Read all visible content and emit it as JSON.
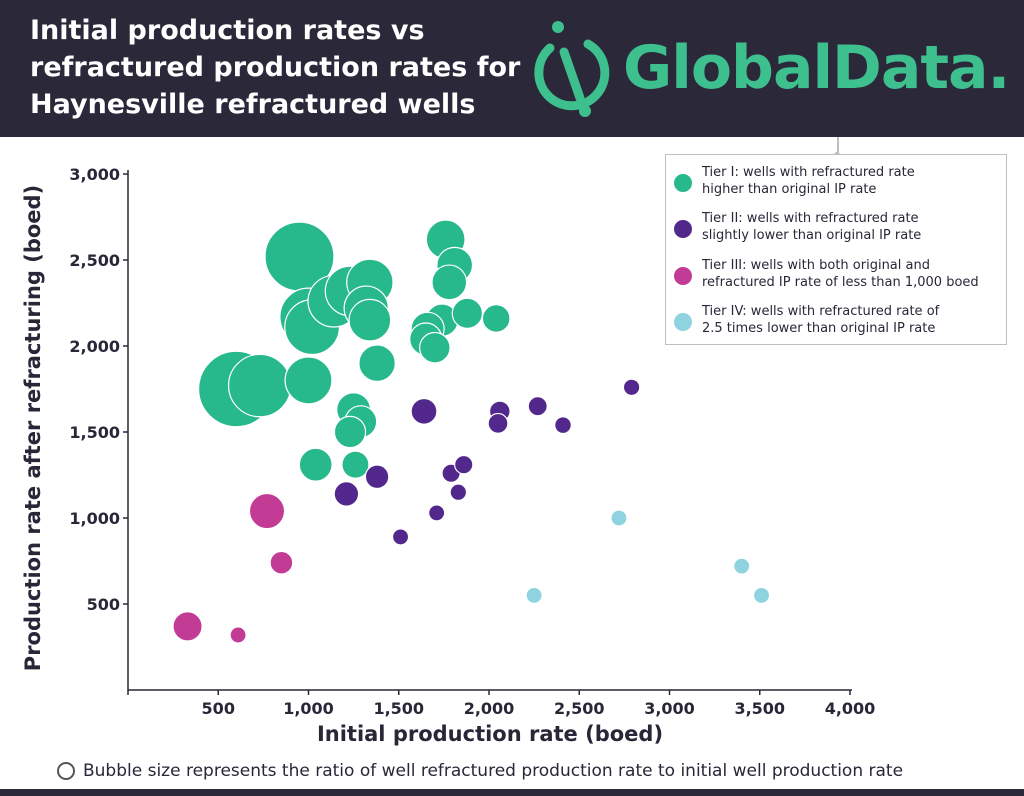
{
  "header": {
    "title_lines": [
      "Initial production rates vs",
      "refractured production rates for",
      "Haynesville refractured wells"
    ],
    "logo_text": "GlobalData.",
    "logo_color": "#3dbf8e",
    "background": "#2b2839"
  },
  "legend": {
    "items": [
      {
        "line1": "Tier I: wells with refractured rate",
        "line2": "higher than original IP rate",
        "color": "#27b98b"
      },
      {
        "line1": "Tier II: wells with refractured rate",
        "line2": "slightly lower than original IP rate",
        "color": "#53288c"
      },
      {
        "line1": "Tier III: wells with both original and",
        "line2": "refractured IP rate of less than 1,000 boed",
        "color": "#c23c95"
      },
      {
        "line1": "Tier IV: wells with refractured rate of",
        "line2": "2.5 times lower than original IP rate",
        "color": "#8ed3df"
      }
    ]
  },
  "footnote": "Bubble size represents the ratio of well refractured production rate to initial well production rate",
  "chart_data": {
    "type": "scatter",
    "title": "Initial production rates vs refractured production rates for Haynesville refractured wells",
    "xlabel": "Initial production rate (boed)",
    "ylabel": "Production rate after refracturing (boed)",
    "xlim": [
      0,
      4000
    ],
    "ylim": [
      0,
      3000
    ],
    "xticks": [
      500,
      1000,
      1500,
      2000,
      2500,
      3000,
      3500,
      4000
    ],
    "xtick_labels": [
      "500",
      "1,000",
      "1,500",
      "2,000",
      "2,500",
      "3,000",
      "3,500",
      "4,000"
    ],
    "yticks": [
      500,
      1000,
      1500,
      2000,
      2500,
      3000
    ],
    "ytick_labels": [
      "500",
      "1,000",
      "1,500",
      "2,000",
      "2,500",
      "3,000"
    ],
    "grid": false,
    "legend_position": "top-right",
    "bubble_size_meaning": "ratio of refractured rate to initial rate",
    "series": [
      {
        "name": "Tier I: wells with refractured rate higher than original IP rate",
        "color": "#27b98b",
        "points": [
          {
            "x": 600,
            "y": 1750,
            "r": 2.9
          },
          {
            "x": 730,
            "y": 1770,
            "r": 2.4
          },
          {
            "x": 950,
            "y": 2520,
            "r": 2.65
          },
          {
            "x": 1000,
            "y": 2170,
            "r": 2.2
          },
          {
            "x": 1020,
            "y": 2110,
            "r": 2.1
          },
          {
            "x": 1000,
            "y": 1800,
            "r": 1.8
          },
          {
            "x": 1140,
            "y": 2260,
            "r": 1.98
          },
          {
            "x": 1230,
            "y": 2320,
            "r": 1.9
          },
          {
            "x": 1340,
            "y": 2370,
            "r": 1.78
          },
          {
            "x": 1320,
            "y": 2220,
            "r": 1.7
          },
          {
            "x": 1340,
            "y": 2150,
            "r": 1.6
          },
          {
            "x": 1380,
            "y": 1900,
            "r": 1.4
          },
          {
            "x": 1250,
            "y": 1630,
            "r": 1.3
          },
          {
            "x": 1290,
            "y": 1560,
            "r": 1.22
          },
          {
            "x": 1230,
            "y": 1500,
            "r": 1.2
          },
          {
            "x": 1260,
            "y": 1310,
            "r": 1.04
          },
          {
            "x": 1040,
            "y": 1310,
            "r": 1.26
          },
          {
            "x": 1760,
            "y": 2620,
            "r": 1.49
          },
          {
            "x": 1810,
            "y": 2470,
            "r": 1.37
          },
          {
            "x": 1780,
            "y": 2370,
            "r": 1.33
          },
          {
            "x": 1740,
            "y": 2150,
            "r": 1.24
          },
          {
            "x": 1660,
            "y": 2100,
            "r": 1.27
          },
          {
            "x": 1650,
            "y": 2040,
            "r": 1.24
          },
          {
            "x": 1700,
            "y": 1990,
            "r": 1.17
          },
          {
            "x": 1880,
            "y": 2190,
            "r": 1.16
          },
          {
            "x": 2040,
            "y": 2160,
            "r": 1.06
          }
        ]
      },
      {
        "name": "Tier II: wells with refractured rate slightly lower than original IP rate",
        "color": "#53288c",
        "points": [
          {
            "x": 1210,
            "y": 1140,
            "r": 0.94
          },
          {
            "x": 1380,
            "y": 1240,
            "r": 0.9
          },
          {
            "x": 1510,
            "y": 890,
            "r": 0.59
          },
          {
            "x": 1640,
            "y": 1620,
            "r": 0.99
          },
          {
            "x": 1710,
            "y": 1030,
            "r": 0.6
          },
          {
            "x": 1790,
            "y": 1260,
            "r": 0.7
          },
          {
            "x": 1830,
            "y": 1150,
            "r": 0.63
          },
          {
            "x": 1860,
            "y": 1310,
            "r": 0.7
          },
          {
            "x": 2060,
            "y": 1620,
            "r": 0.79
          },
          {
            "x": 2050,
            "y": 1550,
            "r": 0.76
          },
          {
            "x": 2270,
            "y": 1650,
            "r": 0.73
          },
          {
            "x": 2410,
            "y": 1540,
            "r": 0.64
          },
          {
            "x": 2790,
            "y": 1760,
            "r": 0.63
          }
        ]
      },
      {
        "name": "Tier III: wells with both original and refractured IP rate of less than 1,000 boed",
        "color": "#c23c95",
        "points": [
          {
            "x": 330,
            "y": 370,
            "r": 1.12
          },
          {
            "x": 610,
            "y": 320,
            "r": 0.52
          },
          {
            "x": 770,
            "y": 1040,
            "r": 1.35
          },
          {
            "x": 850,
            "y": 740,
            "r": 0.87
          }
        ]
      },
      {
        "name": "Tier IV: wells with refractured rate of 2.5 times lower than original IP rate",
        "color": "#8ed3df",
        "points": [
          {
            "x": 2250,
            "y": 550,
            "r": 0.24
          },
          {
            "x": 2720,
            "y": 1000,
            "r": 0.37
          },
          {
            "x": 3400,
            "y": 720,
            "r": 0.21
          },
          {
            "x": 3510,
            "y": 550,
            "r": 0.16
          }
        ]
      }
    ]
  }
}
